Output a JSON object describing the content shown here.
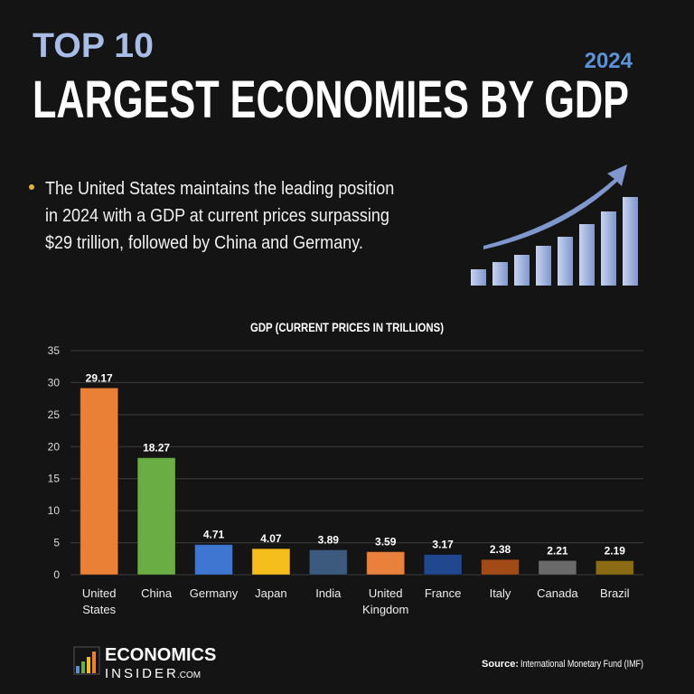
{
  "header": {
    "kicker": "TOP 10",
    "title": "LARGEST ECONOMIES BY GDP",
    "year": "2024"
  },
  "bullet": "The United States maintains the leading position in 2024 with a GDP at current prices surpassing $29 trillion, followed by China and Germany.",
  "chart_data": {
    "type": "bar",
    "title": "GDP (CURRENT PRICES IN TRILLIONS)",
    "categories": [
      "United States",
      "China",
      "Germany",
      "Japan",
      "India",
      "United Kingdom",
      "France",
      "Italy",
      "Canada",
      "Brazil"
    ],
    "values": [
      29.17,
      18.27,
      4.71,
      4.07,
      3.89,
      3.59,
      3.17,
      2.38,
      2.21,
      2.19
    ],
    "colors": [
      "#ea7f36",
      "#6bad45",
      "#3f76d2",
      "#f5be1c",
      "#3c5a7e",
      "#e9813c",
      "#21478e",
      "#a24b18",
      "#6a6a6a",
      "#8b6c14"
    ],
    "ylim": [
      0,
      35
    ],
    "yticks": [
      0,
      5,
      10,
      15,
      20,
      25,
      30,
      35
    ],
    "grid": true
  },
  "footer": {
    "brand_top": "ECONOMICS",
    "brand_bottom": "INSIDER",
    "brand_suffix": ".COM",
    "source_label": "Source:",
    "source": "International Monetary Fund (IMF)"
  }
}
